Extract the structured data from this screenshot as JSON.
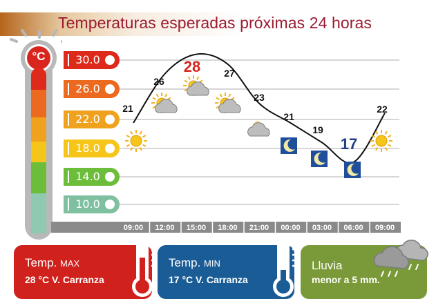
{
  "title": "Temperaturas esperadas próximas 24 horas",
  "thermometer": {
    "unit": "°C"
  },
  "scale_labels": [
    "30.0",
    "26.0",
    "22.0",
    "18.0",
    "14.0",
    "10.0"
  ],
  "scale_colors": [
    "#dd2a1b",
    "#ec6a1f",
    "#f0a11d",
    "#f5c51a",
    "#6cbd3a",
    "#7fc0a1"
  ],
  "chart_data": {
    "type": "line",
    "title": "Temperaturas esperadas próximas 24 horas",
    "unit": "°C",
    "x": [
      "09:00",
      "12:00",
      "15:00",
      "18:00",
      "21:00",
      "00:00",
      "03:00",
      "06:00",
      "09:00"
    ],
    "values": [
      21,
      26,
      28,
      27,
      23,
      21,
      19,
      17,
      22
    ],
    "highlight_max": 28,
    "highlight_min": 17,
    "conditions": [
      "sun-icon",
      "sun-cloud-icon",
      "sun-cloud-icon",
      "sun-cloud-icon",
      "moon-cloud-icon",
      "moon-icon",
      "moon-icon",
      "moon-icon",
      "sun-icon"
    ],
    "colors": {
      "line": "#111111",
      "max": "#d8261f",
      "min": "#1f3c88",
      "label": "#111111"
    }
  },
  "cards": {
    "max": {
      "title": "Temp.",
      "subtitle": "MAX",
      "value": "28 °C V. Carranza",
      "color": "#d0211d"
    },
    "min": {
      "title": "Temp.",
      "subtitle": "MIN",
      "value": "17 °C V. Carranza",
      "color": "#1a5c96"
    },
    "rain": {
      "title": "Lluvia",
      "value": "menor a 5 mm.",
      "color": "#7a9a3a"
    }
  }
}
